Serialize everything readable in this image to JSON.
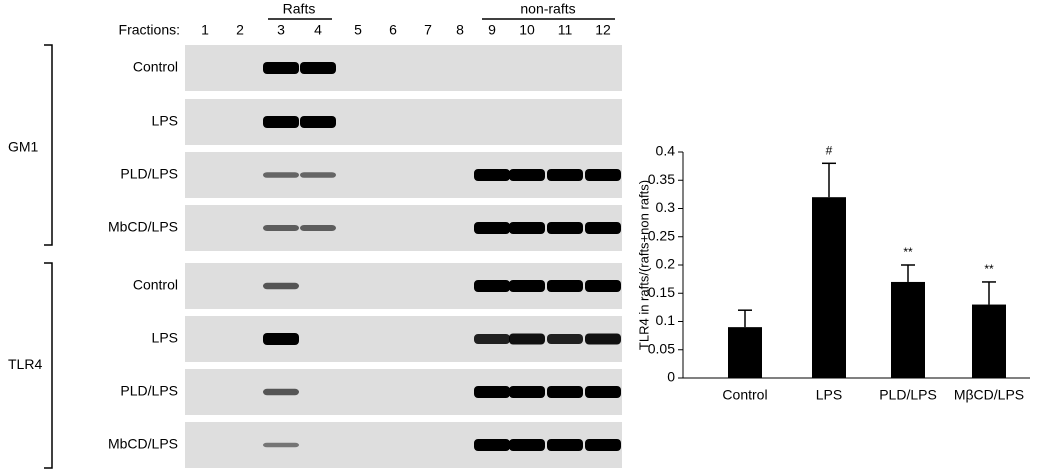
{
  "blot": {
    "fractions_label": "Fractions:",
    "fractions": [
      "1",
      "2",
      "3",
      "4",
      "5",
      "6",
      "7",
      "8",
      "9",
      "10",
      "11",
      "12"
    ],
    "rafts_label": "Rafts",
    "nonrafts_label": "non-rafts",
    "groups": [
      {
        "name": "GM1",
        "rows": [
          "Control",
          "LPS",
          "PLD/LPS",
          "MbCD/LPS"
        ]
      },
      {
        "name": "TLR4",
        "rows": [
          "Control",
          "LPS",
          "PLD/LPS",
          "MbCD/LPS"
        ]
      }
    ]
  },
  "chart_data": {
    "type": "bar",
    "y_label": "TLR4 in rafts/(rafts+non rafts)",
    "categories": [
      "Control",
      "LPS",
      "PLD/LPS",
      "MβCD/LPS"
    ],
    "values": [
      0.09,
      0.32,
      0.17,
      0.13
    ],
    "errors": [
      0.03,
      0.06,
      0.03,
      0.04
    ],
    "markers": [
      null,
      "#",
      "**",
      "**"
    ],
    "color": "#000000",
    "ylim": [
      0,
      0.4
    ],
    "yticks": [
      0,
      0.05,
      0.1,
      0.15,
      0.2,
      0.25,
      0.3,
      0.35,
      0.4
    ]
  }
}
